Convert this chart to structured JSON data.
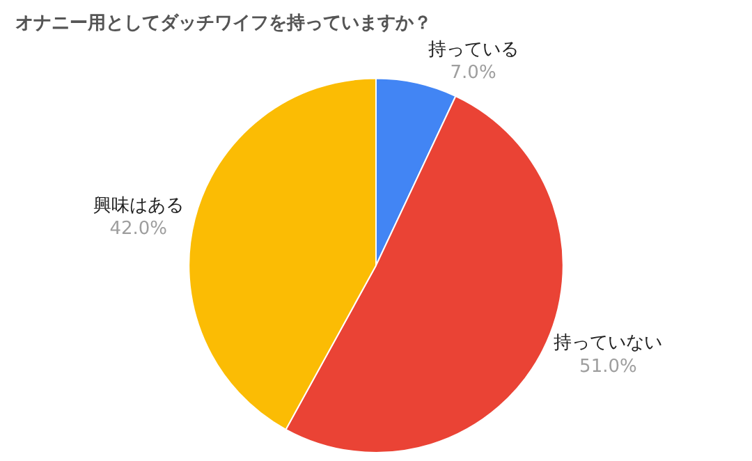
{
  "chart_data": {
    "type": "pie",
    "title": "オナニー用としてダッチワイフを持っていますか？",
    "categories": [
      "持っている",
      "持っていない",
      "興味はある"
    ],
    "values": [
      7.0,
      51.0,
      42.0
    ],
    "colors": [
      "#4285f4",
      "#ea4335",
      "#fbbc04"
    ],
    "value_labels": [
      "7.0%",
      "51.0%",
      "42.0%"
    ],
    "legend": false
  }
}
